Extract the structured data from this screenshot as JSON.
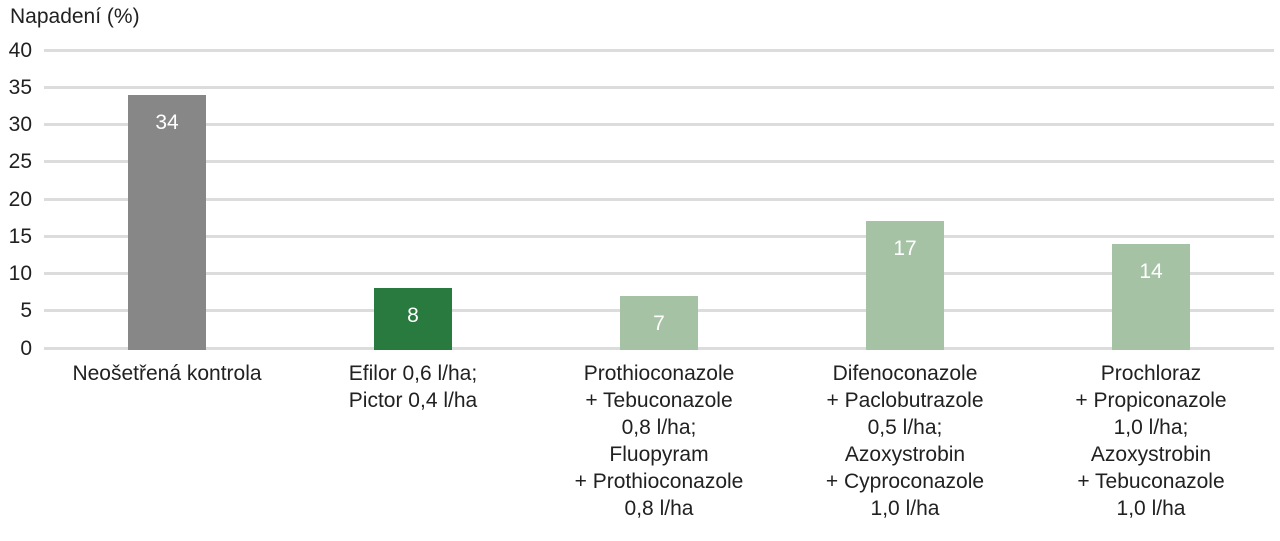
{
  "chart_data": {
    "type": "bar",
    "title": "Napadení (%)",
    "categories": [
      [
        "Neošetřená kontrola"
      ],
      [
        "Efilor 0,6 l/ha;",
        "Pictor 0,4 l/ha"
      ],
      [
        "Prothioconazole",
        "+ Tebuconazole",
        "0,8 l/ha;",
        "Fluopyram",
        "+ Prothioconazole",
        "0,8 l/ha"
      ],
      [
        "Difenoconazole",
        "+ Paclobutrazole",
        "0,5 l/ha;",
        "Azoxystrobin",
        "+ Cyproconazole",
        "1,0 l/ha"
      ],
      [
        "Prochloraz",
        "+ Propiconazole",
        "1,0 l/ha;",
        "Azoxystrobin",
        "+ Tebuconazole",
        "1,0 l/ha"
      ]
    ],
    "values": [
      34,
      8,
      7,
      17,
      14
    ],
    "value_labels": [
      "34",
      "8",
      "7",
      "17",
      "14"
    ],
    "bar_colors": [
      "#878787",
      "#287a3e",
      "#a5c2a5",
      "#a5c2a5",
      "#a5c2a5"
    ],
    "xlabel": "",
    "ylabel": "Napadení (%)",
    "ylim": [
      0,
      40
    ],
    "yticks": [
      0,
      5,
      10,
      15,
      20,
      25,
      30,
      35,
      40
    ],
    "grid": "horizontal",
    "legend": "none",
    "colors": {
      "gridline": "#dcdcdc",
      "axis_text": "#212121",
      "value_label_text": "#ffffff",
      "background": "#ffffff"
    }
  }
}
